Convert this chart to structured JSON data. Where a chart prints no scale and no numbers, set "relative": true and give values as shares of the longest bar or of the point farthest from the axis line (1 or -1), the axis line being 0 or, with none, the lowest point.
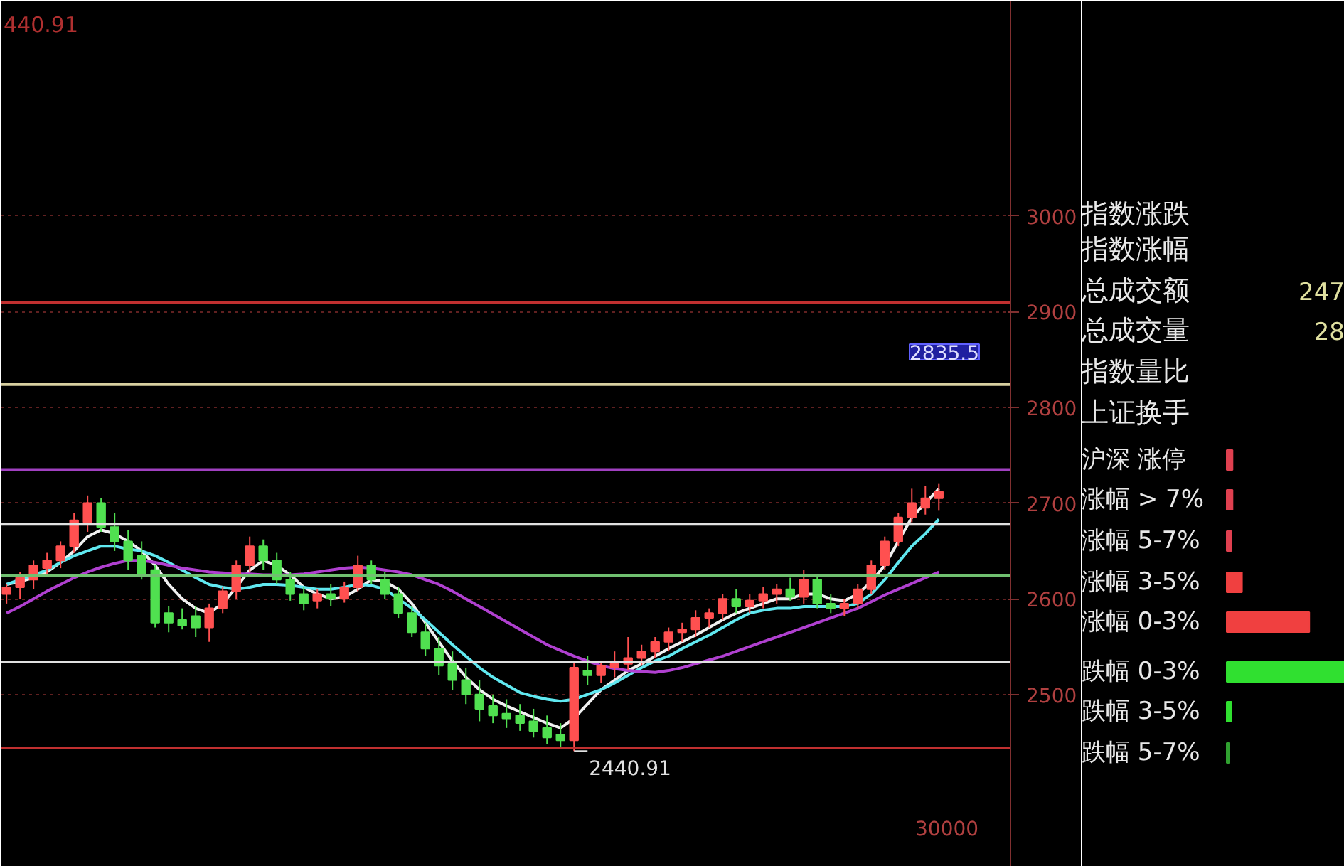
{
  "chart_data": [
    {
      "type": "candlestick",
      "categories": [
        null,
        null,
        null,
        null,
        null,
        null,
        null,
        null,
        null,
        null,
        null,
        null,
        null,
        null,
        null,
        null,
        null,
        null,
        null,
        null,
        null,
        null,
        null,
        null,
        null,
        null,
        null,
        null,
        null,
        null,
        null,
        null,
        null,
        null,
        null,
        null,
        null,
        null,
        null,
        null,
        null,
        null,
        null,
        null,
        null,
        null,
        null,
        null,
        null,
        null,
        null,
        null,
        null,
        null,
        null,
        null,
        null,
        null,
        null,
        null,
        null,
        null,
        null,
        null,
        null,
        null,
        null,
        null,
        null,
        null
      ],
      "ylim": [
        2320,
        3225
      ],
      "yticks": [
        2500,
        2600,
        2700,
        2800,
        2900,
        3000
      ],
      "grid": "y",
      "series": [
        {
          "type": "candlestick",
          "ohlc": [
            [
              2605,
              2615,
              2595,
              2612
            ],
            [
              2612,
              2628,
              2600,
              2622
            ],
            [
              2620,
              2640,
              2610,
              2635
            ],
            [
              2632,
              2648,
              2625,
              2640
            ],
            [
              2640,
              2660,
              2632,
              2655
            ],
            [
              2655,
              2690,
              2648,
              2682
            ],
            [
              2680,
              2708,
              2670,
              2700
            ],
            [
              2700,
              2705,
              2670,
              2675
            ],
            [
              2675,
              2690,
              2650,
              2660
            ],
            [
              2660,
              2672,
              2630,
              2640
            ],
            [
              2645,
              2660,
              2620,
              2625
            ],
            [
              2630,
              2635,
              2570,
              2575
            ],
            [
              2585,
              2592,
              2565,
              2575
            ],
            [
              2578,
              2590,
              2568,
              2572
            ],
            [
              2582,
              2592,
              2560,
              2570
            ],
            [
              2570,
              2595,
              2555,
              2590
            ],
            [
              2590,
              2612,
              2585,
              2608
            ],
            [
              2608,
              2640,
              2600,
              2635
            ],
            [
              2635,
              2665,
              2628,
              2655
            ],
            [
              2655,
              2662,
              2630,
              2640
            ],
            [
              2640,
              2648,
              2615,
              2620
            ],
            [
              2620,
              2628,
              2598,
              2605
            ],
            [
              2605,
              2612,
              2588,
              2595
            ],
            [
              2598,
              2610,
              2590,
              2605
            ],
            [
              2605,
              2615,
              2592,
              2600
            ],
            [
              2600,
              2618,
              2596,
              2612
            ],
            [
              2612,
              2645,
              2608,
              2635
            ],
            [
              2635,
              2640,
              2615,
              2620
            ],
            [
              2620,
              2628,
              2600,
              2605
            ],
            [
              2605,
              2612,
              2580,
              2585
            ],
            [
              2585,
              2592,
              2560,
              2565
            ],
            [
              2565,
              2575,
              2540,
              2548
            ],
            [
              2548,
              2560,
              2520,
              2530
            ],
            [
              2532,
              2545,
              2505,
              2515
            ],
            [
              2515,
              2528,
              2490,
              2500
            ],
            [
              2500,
              2515,
              2472,
              2485
            ],
            [
              2488,
              2500,
              2470,
              2478
            ],
            [
              2480,
              2495,
              2465,
              2475
            ],
            [
              2478,
              2490,
              2462,
              2470
            ],
            [
              2472,
              2485,
              2455,
              2462
            ],
            [
              2465,
              2478,
              2448,
              2455
            ],
            [
              2458,
              2470,
              2445,
              2452
            ],
            [
              2452,
              2535,
              2440.91,
              2528
            ],
            [
              2525,
              2540,
              2510,
              2520
            ],
            [
              2520,
              2535,
              2512,
              2530
            ],
            [
              2528,
              2545,
              2518,
              2532
            ],
            [
              2532,
              2560,
              2525,
              2538
            ],
            [
              2538,
              2552,
              2530,
              2545
            ],
            [
              2545,
              2560,
              2538,
              2555
            ],
            [
              2555,
              2570,
              2545,
              2565
            ],
            [
              2565,
              2575,
              2555,
              2568
            ],
            [
              2568,
              2588,
              2560,
              2580
            ],
            [
              2580,
              2590,
              2570,
              2585
            ],
            [
              2585,
              2605,
              2578,
              2600
            ],
            [
              2600,
              2610,
              2585,
              2592
            ],
            [
              2592,
              2605,
              2585,
              2598
            ],
            [
              2598,
              2612,
              2590,
              2605
            ],
            [
              2605,
              2615,
              2595,
              2610
            ],
            [
              2610,
              2622,
              2598,
              2602
            ],
            [
              2602,
              2630,
              2595,
              2620
            ],
            [
              2620,
              2625,
              2590,
              2595
            ],
            [
              2595,
              2605,
              2585,
              2590
            ],
            [
              2590,
              2600,
              2582,
              2595
            ],
            [
              2595,
              2615,
              2590,
              2610
            ],
            [
              2610,
              2640,
              2605,
              2635
            ],
            [
              2635,
              2665,
              2630,
              2660
            ],
            [
              2660,
              2690,
              2655,
              2685
            ],
            [
              2685,
              2715,
              2680,
              2700
            ],
            [
              2695,
              2718,
              2688,
              2705
            ],
            [
              2705,
              2720,
              2692,
              2712
            ]
          ],
          "colors": [
            "#ff5050",
            "#ff5050",
            "#ff5050",
            "#ff5050",
            "#ff5050",
            "#ff5050",
            "#ff5050",
            "#50e050",
            "#50e050",
            "#50e050",
            "#50e050",
            "#50e050",
            "#50e050",
            "#50e050",
            "#50e050",
            "#ff5050",
            "#ff5050",
            "#ff5050",
            "#ff5050",
            "#50e050",
            "#50e050",
            "#50e050",
            "#50e050",
            "#ff5050",
            "#50e050",
            "#ff5050",
            "#ff5050",
            "#50e050",
            "#50e050",
            "#50e050",
            "#50e050",
            "#50e050",
            "#50e050",
            "#50e050",
            "#50e050",
            "#50e050",
            "#50e050",
            "#50e050",
            "#50e050",
            "#50e050",
            "#50e050",
            "#50e050",
            "#ff5050",
            "#50e050",
            "#ff5050",
            "#ff5050",
            "#ff5050",
            "#ff5050",
            "#ff5050",
            "#ff5050",
            "#ff5050",
            "#ff5050",
            "#ff5050",
            "#ff5050",
            "#50e050",
            "#ff5050",
            "#ff5050",
            "#ff5050",
            "#50e050",
            "#ff5050",
            "#50e050",
            "#50e050",
            "#ff5050",
            "#ff5050",
            "#ff5050",
            "#ff5050",
            "#ff5050",
            "#ff5050",
            "#ff5050",
            "#ff5050"
          ]
        },
        {
          "type": "line",
          "color": "#f0f0f0",
          "values": [
            2615,
            2618,
            2622,
            2628,
            2638,
            2650,
            2665,
            2672,
            2668,
            2660,
            2650,
            2635,
            2615,
            2600,
            2590,
            2585,
            2595,
            2612,
            2630,
            2640,
            2635,
            2625,
            2612,
            2605,
            2600,
            2602,
            2610,
            2620,
            2618,
            2610,
            2595,
            2575,
            2555,
            2535,
            2518,
            2505,
            2495,
            2488,
            2482,
            2476,
            2470,
            2465,
            2475,
            2490,
            2505,
            2515,
            2525,
            2532,
            2540,
            2548,
            2555,
            2562,
            2570,
            2578,
            2585,
            2590,
            2595,
            2600,
            2600,
            2605,
            2605,
            2600,
            2598,
            2605,
            2618,
            2635,
            2660,
            2685,
            2700,
            2715
          ]
        },
        {
          "type": "line",
          "color": "#60e8f0",
          "values": [
            2615,
            2620,
            2625,
            2630,
            2638,
            2645,
            2650,
            2655,
            2655,
            2652,
            2650,
            2645,
            2638,
            2630,
            2622,
            2615,
            2612,
            2610,
            2612,
            2615,
            2615,
            2614,
            2612,
            2610,
            2610,
            2612,
            2615,
            2614,
            2610,
            2600,
            2590,
            2578,
            2565,
            2552,
            2540,
            2528,
            2518,
            2510,
            2502,
            2498,
            2495,
            2493,
            2495,
            2500,
            2505,
            2512,
            2520,
            2528,
            2535,
            2540,
            2548,
            2555,
            2562,
            2570,
            2578,
            2585,
            2588,
            2590,
            2590,
            2592,
            2592,
            2592,
            2592,
            2595,
            2605,
            2620,
            2638,
            2655,
            2668,
            2683
          ]
        },
        {
          "type": "line",
          "color": "#b040d0",
          "values": [
            2585,
            2592,
            2600,
            2608,
            2615,
            2622,
            2628,
            2633,
            2637,
            2640,
            2640,
            2638,
            2635,
            2632,
            2630,
            2628,
            2627,
            2626,
            2626,
            2625,
            2625,
            2625,
            2626,
            2628,
            2630,
            2632,
            2633,
            2632,
            2630,
            2628,
            2625,
            2620,
            2615,
            2608,
            2600,
            2592,
            2584,
            2576,
            2568,
            2560,
            2552,
            2546,
            2540,
            2535,
            2530,
            2527,
            2525,
            2524,
            2523,
            2525,
            2528,
            2532,
            2536,
            2540,
            2545,
            2550,
            2555,
            2560,
            2565,
            2570,
            2575,
            2580,
            2585,
            2590,
            2597,
            2604,
            2610,
            2616,
            2622,
            2628
          ]
        }
      ],
      "ref_lines": [
        {
          "axis": "y",
          "value": 2910,
          "color": "#c03030"
        },
        {
          "axis": "y",
          "value": 2824,
          "color": "#d8d0a0"
        },
        {
          "axis": "y",
          "value": 2735,
          "color": "#a040c0"
        },
        {
          "axis": "y",
          "value": 2678,
          "color": "#e0e0e0"
        },
        {
          "axis": "y",
          "value": 2624,
          "color": "#70c070"
        },
        {
          "axis": "y",
          "value": 2534,
          "color": "#e0e0e0"
        },
        {
          "axis": "y",
          "value": 2444,
          "color": "#c03030"
        }
      ],
      "annotations": [
        "440.91",
        {
          "text": "2440.91",
          "y": 2440.91
        },
        "2835.5",
        "30000"
      ]
    },
    {
      "type": "bar",
      "orientation": "horizontal",
      "relative": true,
      "categories": [
        "沪深 涨停",
        "涨幅 > 7%",
        "涨幅 5-7%",
        "涨幅 3-5%",
        "涨幅 0-3%",
        "跌幅 0-3%",
        "跌幅 3-5%",
        "跌幅 5-7%"
      ],
      "values": [
        0.05,
        0.05,
        0.04,
        0.13,
        0.7,
        1,
        0.04,
        0.02
      ],
      "colors": [
        "#e04050",
        "#e04050",
        "#e04050",
        "#f04040",
        "#f04040",
        "#30e030",
        "#30e030",
        "#30a030"
      ],
      "annotations": [
        "指数涨跌",
        "指数涨幅",
        "总成交额",
        "总成交量",
        "指数量比",
        "上证换手",
        "247",
        "28"
      ]
    }
  ]
}
